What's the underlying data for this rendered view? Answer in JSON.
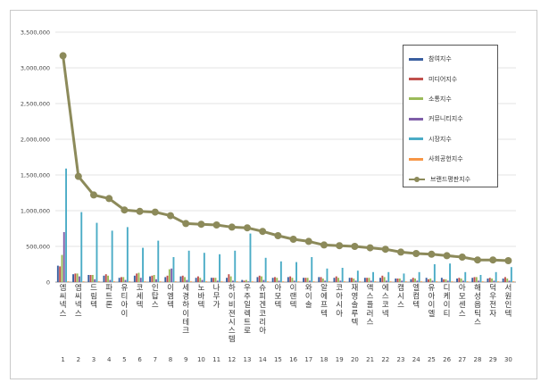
{
  "chart_data": {
    "type": "bar",
    "ylim": [
      0,
      3500000
    ],
    "yticks": [
      "0",
      "500,000",
      "1,000,000",
      "1,500,000",
      "2,000,000",
      "2,500,000",
      "3,000,000",
      "3,500,000"
    ],
    "categories": [
      "엠씨넥스",
      "엠씨넥스",
      "드림텍",
      "파트론",
      "유티아이",
      "코세텍",
      "인탑스",
      "이엠텍",
      "세경하이테크",
      "노바텍",
      "나무가",
      "하이비젼시스템",
      "우주일렉트로",
      "슈피겐코리아",
      "아모텍",
      "이랜텍",
      "와이솔",
      "알에프텍",
      "코아시아",
      "재영솔루텍",
      "액스플러스",
      "에스코넥",
      "캠시스",
      "엘컴텍",
      "유아이엘",
      "디케이티",
      "아모센스",
      "해성옵틱스",
      "덕우전자",
      "서원인텍"
    ],
    "ranks": [
      "1",
      "2",
      "3",
      "4",
      "5",
      "6",
      "7",
      "8",
      "9",
      "10",
      "11",
      "12",
      "13",
      "14",
      "15",
      "16",
      "17",
      "18",
      "19",
      "20",
      "21",
      "22",
      "23",
      "24",
      "25",
      "26",
      "27",
      "28",
      "29",
      "30"
    ],
    "series": [
      {
        "name": "참여지수",
        "color": "#3a5fa0",
        "values": [
          230000,
          110000,
          100000,
          90000,
          60000,
          90000,
          80000,
          70000,
          80000,
          60000,
          60000,
          60000,
          30000,
          70000,
          60000,
          70000,
          60000,
          70000,
          60000,
          60000,
          60000,
          60000,
          50000,
          40000,
          60000,
          60000,
          50000,
          60000,
          50000,
          50000
        ]
      },
      {
        "name": "미디어지수",
        "color": "#c0504d",
        "values": [
          220000,
          120000,
          100000,
          110000,
          70000,
          120000,
          90000,
          90000,
          90000,
          80000,
          60000,
          110000,
          20000,
          90000,
          70000,
          80000,
          60000,
          70000,
          80000,
          60000,
          60000,
          90000,
          50000,
          60000,
          40000,
          40000,
          60000,
          70000,
          60000,
          70000
        ]
      },
      {
        "name": "소통지수",
        "color": "#9bbb59",
        "values": [
          380000,
          120000,
          100000,
          90000,
          70000,
          130000,
          100000,
          180000,
          70000,
          60000,
          60000,
          80000,
          30000,
          80000,
          60000,
          60000,
          60000,
          50000,
          60000,
          50000,
          60000,
          70000,
          50000,
          50000,
          50000,
          40000,
          50000,
          70000,
          50000,
          50000
        ]
      },
      {
        "name": "커뮤니티지수",
        "color": "#7f5ea8",
        "values": [
          700000,
          80000,
          40000,
          30000,
          30000,
          60000,
          40000,
          190000,
          30000,
          30000,
          20000,
          20000,
          10000,
          30000,
          20000,
          20000,
          20000,
          20000,
          20000,
          20000,
          20000,
          20000,
          20000,
          20000,
          20000,
          20000,
          20000,
          20000,
          20000,
          20000
        ]
      },
      {
        "name": "시장지수",
        "color": "#4bacc6",
        "values": [
          1590000,
          980000,
          830000,
          720000,
          770000,
          480000,
          580000,
          350000,
          440000,
          410000,
          390000,
          440000,
          680000,
          340000,
          290000,
          280000,
          350000,
          190000,
          200000,
          160000,
          140000,
          140000,
          120000,
          140000,
          250000,
          260000,
          140000,
          100000,
          140000,
          210000
        ]
      },
      {
        "name": "사회공헌지수",
        "color": "#f79646",
        "values": [
          10000,
          10000,
          10000,
          10000,
          10000,
          10000,
          10000,
          10000,
          10000,
          10000,
          10000,
          10000,
          10000,
          10000,
          10000,
          10000,
          10000,
          10000,
          10000,
          10000,
          10000,
          10000,
          10000,
          10000,
          10000,
          10000,
          10000,
          10000,
          10000,
          10000
        ]
      },
      {
        "name": "브랜드평판지수",
        "color": "#8c8a5a",
        "values": [
          3170000,
          1480000,
          1220000,
          1170000,
          1010000,
          990000,
          980000,
          930000,
          820000,
          810000,
          800000,
          770000,
          760000,
          710000,
          650000,
          600000,
          570000,
          520000,
          510000,
          500000,
          480000,
          460000,
          420000,
          400000,
          390000,
          370000,
          350000,
          310000,
          310000,
          300000
        ]
      }
    ]
  }
}
